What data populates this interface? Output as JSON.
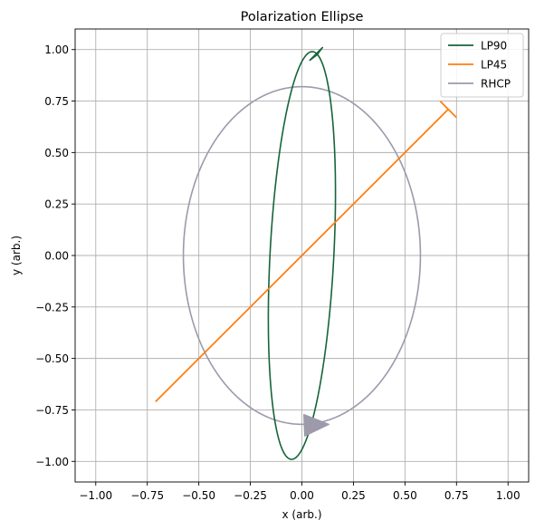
{
  "chart_data": {
    "type": "line",
    "title": "Polarization Ellipse",
    "xlabel": "x (arb.)",
    "ylabel": "y (arb.)",
    "xlim": [
      -1.1,
      1.1
    ],
    "ylim": [
      -1.1,
      1.1
    ],
    "xticks": [
      -1.0,
      -0.75,
      -0.5,
      -0.25,
      0.0,
      0.25,
      0.5,
      0.75,
      1.0
    ],
    "yticks": [
      -1.0,
      -0.75,
      -0.5,
      -0.25,
      0.0,
      0.25,
      0.5,
      0.75,
      1.0
    ],
    "xtick_labels": [
      "−1.00",
      "−0.75",
      "−0.50",
      "−0.25",
      "0.00",
      "0.25",
      "0.50",
      "0.75",
      "1.00"
    ],
    "ytick_labels": [
      "−1.00",
      "−0.75",
      "−0.50",
      "−0.25",
      "0.00",
      "0.25",
      "0.50",
      "0.75",
      "1.00"
    ],
    "grid": true,
    "legend_position": "top-right",
    "series": [
      {
        "name": "LP90",
        "color": "#16643a",
        "shape": "ellipse",
        "center": [
          0.0,
          0.0
        ],
        "x_amplitude": 0.155,
        "y_amplitude": 0.99,
        "x_at_y_max": 0.05,
        "arrow_at": [
          0.1,
          1.01
        ],
        "arrow_direction": "clockwise"
      },
      {
        "name": "LP45",
        "color": "#ff7f0e",
        "shape": "segment",
        "start": [
          -0.71,
          -0.71
        ],
        "end": [
          0.71,
          0.71
        ],
        "arrow_at": [
          0.71,
          0.71
        ]
      },
      {
        "name": "RHCP",
        "color": "#9c9aab",
        "shape": "ellipse",
        "center": [
          0.0,
          0.0
        ],
        "x_amplitude": 0.575,
        "y_amplitude": 0.82,
        "x_at_y_max": 0.0,
        "arrow_at": [
          0.0,
          -0.82
        ],
        "arrow_direction": "counterclockwise"
      }
    ]
  }
}
